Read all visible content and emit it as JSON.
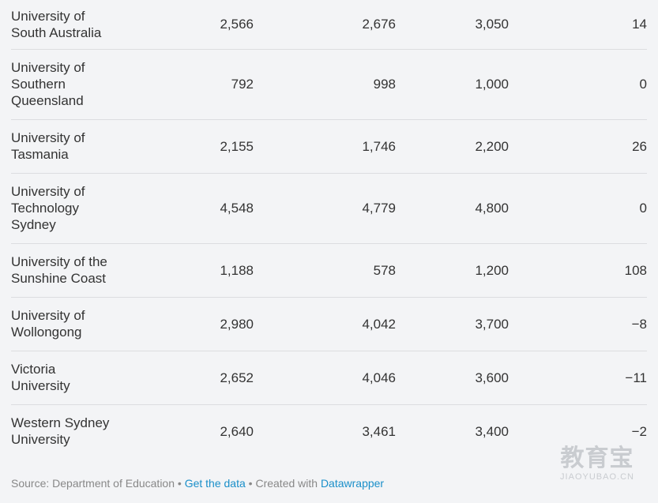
{
  "chart_data": {
    "type": "table",
    "rows": [
      {
        "name": "University of South Australia",
        "name_lines": [
          "University of",
          "South Australia"
        ],
        "values": [
          "2,566",
          "2,676",
          "3,050",
          "14"
        ]
      },
      {
        "name": "University of Southern Queensland",
        "name_lines": [
          "University of",
          "Southern",
          "Queensland"
        ],
        "values": [
          "792",
          "998",
          "1,000",
          "0"
        ]
      },
      {
        "name": "University of Tasmania",
        "name_lines": [
          "University of",
          "Tasmania"
        ],
        "values": [
          "2,155",
          "1,746",
          "2,200",
          "26"
        ]
      },
      {
        "name": "University of Technology Sydney",
        "name_lines": [
          "University of",
          "Technology",
          "Sydney"
        ],
        "values": [
          "4,548",
          "4,779",
          "4,800",
          "0"
        ]
      },
      {
        "name": "University of the Sunshine Coast",
        "name_lines": [
          "University of the",
          "Sunshine Coast"
        ],
        "values": [
          "1,188",
          "578",
          "1,200",
          "108"
        ]
      },
      {
        "name": "University of Wollongong",
        "name_lines": [
          "University of",
          "Wollongong"
        ],
        "values": [
          "2,980",
          "4,042",
          "3,700",
          "−8"
        ]
      },
      {
        "name": "Victoria University",
        "name_lines": [
          "Victoria",
          "University"
        ],
        "values": [
          "2,652",
          "4,046",
          "3,600",
          "−11"
        ]
      },
      {
        "name": "Western Sydney University",
        "name_lines": [
          "Western Sydney",
          "University"
        ],
        "values": [
          "2,640",
          "3,461",
          "3,400",
          "−2"
        ]
      }
    ]
  },
  "footer": {
    "source": "Source: Department of Education",
    "separator": " • ",
    "get_data": "Get the data",
    "created_with": "Created with",
    "datawrapper": "Datawrapper"
  },
  "watermark": {
    "logo": "教育宝",
    "sub": "JIAOYUBAO.CN"
  },
  "colors": {
    "background": "#f3f4f6",
    "text": "#333333",
    "link": "#1a8fc9",
    "footer_text": "#888888"
  }
}
